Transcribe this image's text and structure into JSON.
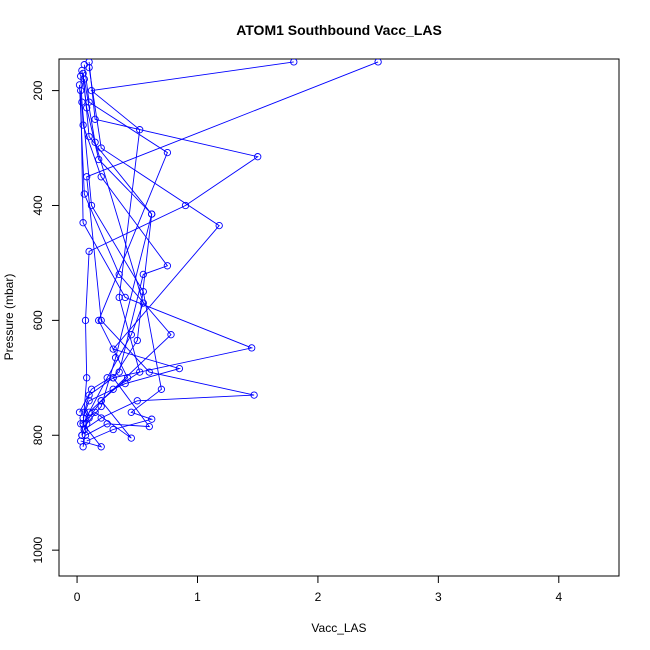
{
  "chart_data": {
    "type": "line",
    "title": "ATOM1 Southbound Vacc_LAS",
    "xlabel": "Vacc_LAS",
    "ylabel": "Pressure (mbar)",
    "xlim": [
      -0.15,
      4.5
    ],
    "ylim": [
      1045,
      145
    ],
    "y_reversed": true,
    "x_ticks": [
      0,
      1,
      2,
      3,
      4
    ],
    "x_tick_labels": [
      "0",
      "1",
      "2",
      "3",
      "4"
    ],
    "y_ticks": [
      200,
      400,
      600,
      800,
      1000
    ],
    "y_tick_labels": [
      "200",
      "400",
      "600",
      "800",
      "1000"
    ],
    "grid": false,
    "legend": "none",
    "series_color": "#0000ff",
    "marker": "open-circle",
    "series": [
      {
        "x": [
          0.05,
          0.08,
          0.07,
          0.1,
          0.9,
          1.5,
          0.15,
          0.1
        ],
        "y": [
          780,
          700,
          600,
          480,
          400,
          315,
          250,
          150
        ]
      },
      {
        "x": [
          0.04,
          0.06,
          0.1,
          0.3,
          1.45,
          0.4,
          0.05,
          0.03
        ],
        "y": [
          800,
          760,
          730,
          700,
          648,
          560,
          430,
          200
        ]
      },
      {
        "x": [
          0.06,
          0.2,
          0.5,
          1.47,
          0.6,
          0.2,
          0.08,
          2.5
        ],
        "y": [
          790,
          770,
          740,
          730,
          690,
          600,
          350,
          150
        ]
      },
      {
        "x": [
          0.05,
          0.1,
          0.4,
          0.85,
          0.3,
          1.18,
          0.2,
          0.1
        ],
        "y": [
          770,
          740,
          710,
          684,
          650,
          435,
          300,
          160
        ]
      },
      {
        "x": [
          0.08,
          0.3,
          0.62,
          0.45,
          0.7,
          0.55,
          0.12,
          0.04
        ],
        "y": [
          810,
          790,
          772,
          760,
          720,
          550,
          400,
          220
        ]
      },
      {
        "x": [
          0.03,
          0.15,
          0.45,
          0.2,
          0.78,
          0.35,
          0.06,
          0.02
        ],
        "y": [
          780,
          760,
          805,
          740,
          625,
          520,
          380,
          190
        ]
      },
      {
        "x": [
          0.07,
          0.25,
          0.6,
          0.3,
          0.5,
          0.62,
          0.1,
          0.05
        ],
        "y": [
          800,
          780,
          785,
          700,
          635,
          415,
          280,
          170
        ]
      },
      {
        "x": [
          0.02,
          0.12,
          0.35,
          0.55,
          0.75,
          0.2,
          0.05,
          0.03
        ],
        "y": [
          760,
          720,
          690,
          520,
          505,
          350,
          260,
          175
        ]
      },
      {
        "x": [
          0.04,
          0.1,
          0.2,
          0.42,
          0.18,
          0.75,
          0.1,
          0.06
        ],
        "y": [
          800,
          770,
          740,
          700,
          600,
          308,
          220,
          155
        ]
      },
      {
        "x": [
          0.06,
          0.1,
          0.3,
          0.52,
          0.35,
          0.52,
          0.12,
          1.8
        ],
        "y": [
          790,
          760,
          720,
          690,
          560,
          268,
          200,
          150
        ]
      },
      {
        "x": [
          0.05,
          0.08,
          0.2,
          0.32,
          0.62,
          0.18,
          0.08,
          0.04
        ],
        "y": [
          820,
          780,
          750,
          665,
          415,
          320,
          230,
          165
        ]
      },
      {
        "x": [
          0.03,
          0.2,
          0.05,
          0.25,
          0.45,
          0.55,
          0.15,
          0.06
        ],
        "y": [
          810,
          820,
          780,
          700,
          625,
          570,
          290,
          180
        ]
      }
    ]
  }
}
